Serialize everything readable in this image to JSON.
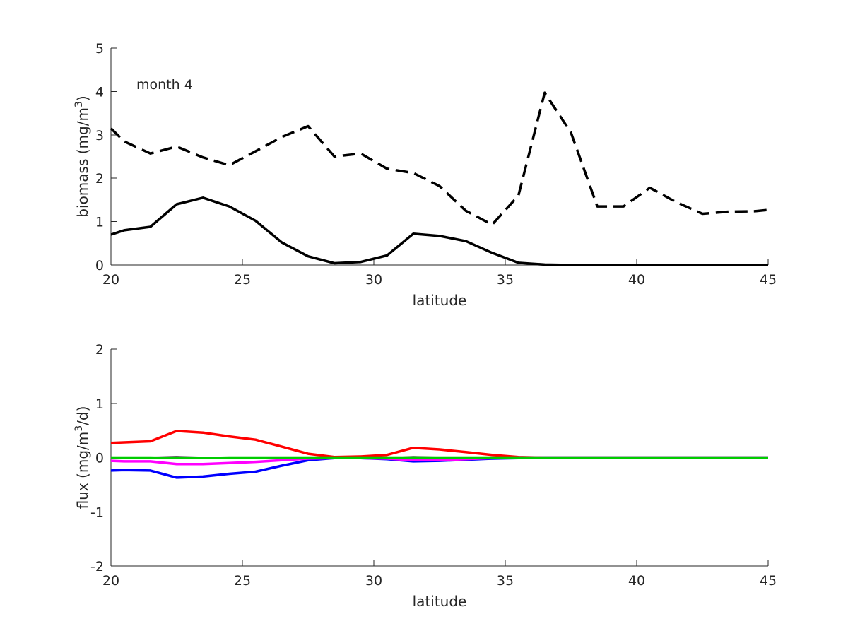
{
  "chart_data": [
    {
      "type": "line",
      "title": "",
      "annotation": "month 4",
      "xlabel": "latitude",
      "ylabel": {
        "prefix": "biomass (mg/m",
        "sup": "3",
        "suffix": ")"
      },
      "xlim": [
        20,
        45
      ],
      "ylim": [
        0,
        5
      ],
      "xticks": [
        20,
        25,
        30,
        35,
        40,
        45
      ],
      "yticks": [
        0,
        1,
        2,
        3,
        4,
        5
      ],
      "grid": false,
      "x": [
        20,
        20.5,
        21.5,
        22.5,
        23.5,
        24.5,
        25.5,
        26.5,
        27.5,
        28.5,
        29.5,
        30.5,
        31.5,
        32.5,
        33.5,
        34.5,
        35.5,
        36.5,
        37.5,
        38.5,
        39.5,
        40.5,
        41.5,
        42.5,
        43.5,
        44.5,
        45
      ],
      "series": [
        {
          "color": "#000000",
          "dash": "dashed",
          "values": [
            3.15,
            2.85,
            2.57,
            2.73,
            2.48,
            2.3,
            2.62,
            2.95,
            3.2,
            2.5,
            2.57,
            2.22,
            2.12,
            1.82,
            1.25,
            0.93,
            1.6,
            3.97,
            3.05,
            1.35,
            1.35,
            1.78,
            1.45,
            1.18,
            1.23,
            1.24,
            1.27
          ]
        },
        {
          "color": "#000000",
          "dash": "solid",
          "values": [
            0.7,
            0.8,
            0.88,
            1.4,
            1.55,
            1.35,
            1.02,
            0.52,
            0.2,
            0.04,
            0.07,
            0.22,
            0.72,
            0.67,
            0.55,
            0.28,
            0.05,
            0.01,
            0.0,
            0.0,
            0.0,
            0.0,
            0.0,
            0.0,
            0.0,
            0.0,
            0.0
          ]
        }
      ]
    },
    {
      "type": "line",
      "title": "",
      "xlabel": "latitude",
      "ylabel": {
        "prefix": "flux (mg/m",
        "sup": "3",
        "suffix": "/d)"
      },
      "xlim": [
        20,
        45
      ],
      "ylim": [
        -2,
        2
      ],
      "xticks": [
        20,
        25,
        30,
        35,
        40,
        45
      ],
      "yticks": [
        -2,
        -1,
        0,
        1,
        2
      ],
      "grid": false,
      "x": [
        20,
        20.5,
        21.5,
        22.5,
        23.5,
        24.5,
        25.5,
        26.5,
        27.5,
        28.5,
        29.5,
        30.5,
        31.5,
        32.5,
        33.5,
        34.5,
        35.5,
        36.5,
        37.5,
        38.5,
        39.5,
        40.5,
        41.5,
        42.5,
        43.5,
        44.5,
        45
      ],
      "series": [
        {
          "color": "#ff0000",
          "dash": "solid",
          "values": [
            0.27,
            0.28,
            0.3,
            0.49,
            0.46,
            0.39,
            0.33,
            0.2,
            0.07,
            0.01,
            0.02,
            0.05,
            0.18,
            0.15,
            0.1,
            0.05,
            0.01,
            0.0,
            0.0,
            0.0,
            0.0,
            0.0,
            0.0,
            0.0,
            0.0,
            0.0,
            0.0
          ]
        },
        {
          "color": "#0000ff",
          "dash": "solid",
          "values": [
            -0.24,
            -0.23,
            -0.24,
            -0.37,
            -0.35,
            -0.3,
            -0.26,
            -0.15,
            -0.05,
            -0.01,
            -0.01,
            -0.03,
            -0.07,
            -0.06,
            -0.04,
            -0.02,
            -0.01,
            0.0,
            0.0,
            0.0,
            0.0,
            0.0,
            0.0,
            0.0,
            0.0,
            0.0,
            0.0
          ]
        },
        {
          "color": "#ff00ff",
          "dash": "solid",
          "values": [
            -0.06,
            -0.07,
            -0.07,
            -0.12,
            -0.12,
            -0.1,
            -0.08,
            -0.05,
            -0.02,
            -0.01,
            -0.01,
            -0.02,
            -0.05,
            -0.05,
            -0.03,
            -0.01,
            0.0,
            0.0,
            0.0,
            0.0,
            0.0,
            0.0,
            0.0,
            0.0,
            0.0,
            0.0,
            0.0
          ]
        },
        {
          "color": "#000000",
          "dash": "solid",
          "thin": true,
          "values": [
            0.01,
            0.01,
            0.01,
            0.02,
            0.01,
            0.01,
            0.01,
            0.0,
            0.0,
            0.0,
            0.0,
            0.0,
            0.02,
            0.01,
            0.01,
            0.0,
            0.0,
            0.0,
            0.0,
            0.0,
            0.0,
            0.0,
            0.0,
            0.0,
            0.0,
            0.0,
            0.0
          ]
        },
        {
          "color": "#00cc00",
          "dash": "solid",
          "values": [
            0.0,
            0.0,
            0.0,
            -0.01,
            -0.01,
            0.0,
            0.0,
            0.0,
            0.0,
            0.0,
            0.0,
            0.0,
            0.0,
            0.0,
            0.0,
            0.0,
            0.0,
            0.0,
            0.0,
            0.0,
            0.0,
            0.0,
            0.0,
            0.0,
            0.0,
            0.0,
            0.0
          ]
        }
      ]
    }
  ]
}
